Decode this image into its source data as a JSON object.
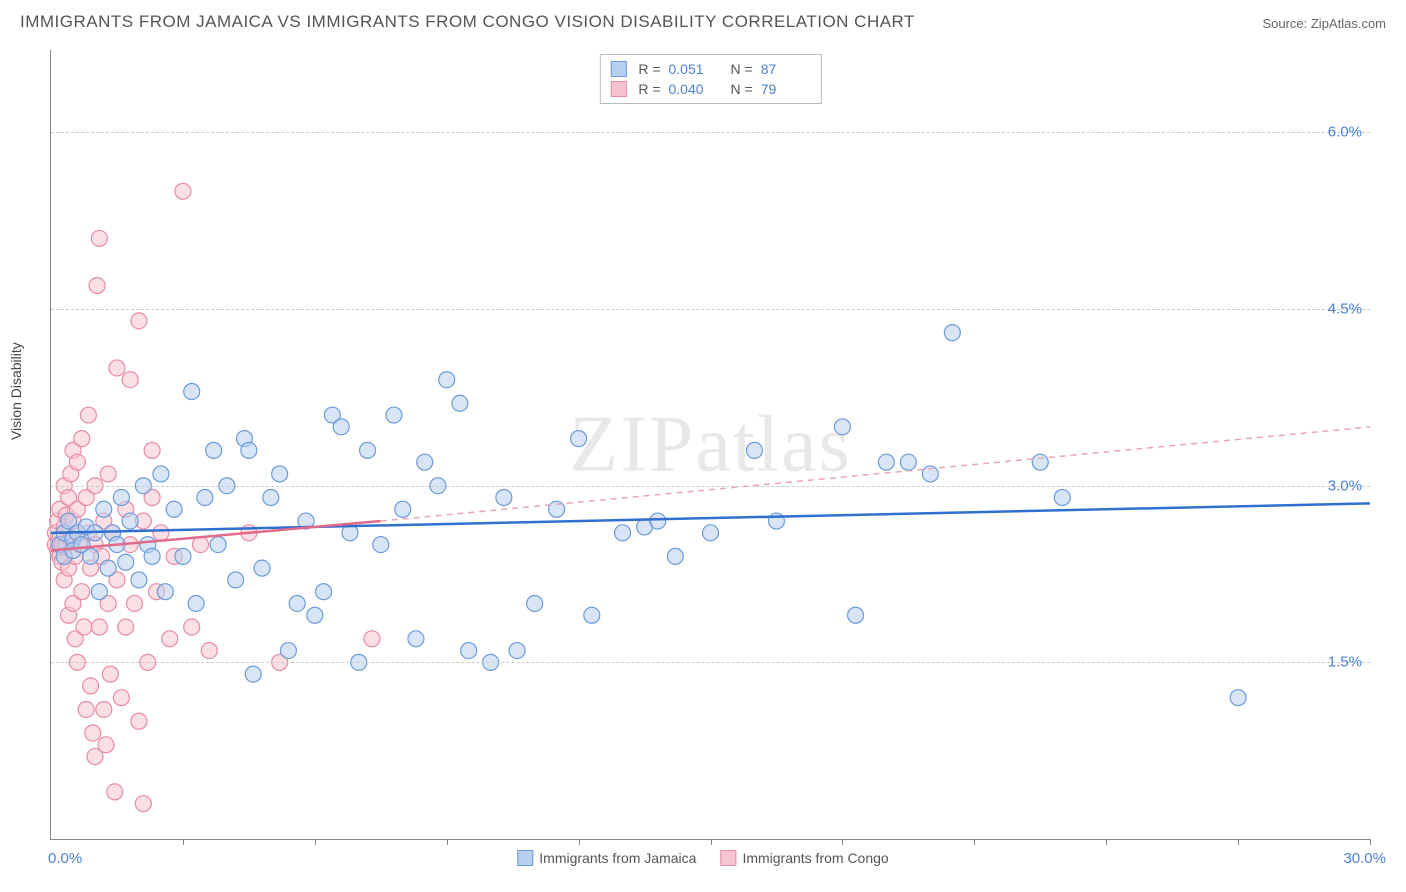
{
  "title": "IMMIGRANTS FROM JAMAICA VS IMMIGRANTS FROM CONGO VISION DISABILITY CORRELATION CHART",
  "source": "Source: ZipAtlas.com",
  "ylabel": "Vision Disability",
  "watermark": "ZIPatlas",
  "chart": {
    "type": "scatter",
    "xlim": [
      0,
      30
    ],
    "ylim": [
      0,
      6.7
    ],
    "y_gridlines": [
      1.5,
      3.0,
      4.5,
      6.0
    ],
    "y_tick_labels": [
      "1.5%",
      "3.0%",
      "4.5%",
      "6.0%"
    ],
    "x_ticks": [
      3,
      6,
      9,
      12,
      15,
      18,
      21,
      24,
      27,
      30
    ],
    "x_axis_start_label": "0.0%",
    "x_axis_end_label": "30.0%",
    "grid_color": "#cccccc",
    "axis_color": "#888888",
    "background_color": "#ffffff",
    "marker_radius": 8,
    "marker_opacity": 0.55,
    "series": [
      {
        "name": "Immigrants from Jamaica",
        "color_fill": "#b8d0f0",
        "color_stroke": "#6b9bd8",
        "R": "0.051",
        "N": "87",
        "trend": {
          "solid_to_x": 30,
          "y_start": 2.6,
          "y_end": 2.85,
          "dashed": false
        },
        "points": [
          [
            0.2,
            2.5
          ],
          [
            0.3,
            2.6
          ],
          [
            0.3,
            2.4
          ],
          [
            0.4,
            2.7
          ],
          [
            0.5,
            2.55
          ],
          [
            0.5,
            2.45
          ],
          [
            0.6,
            2.6
          ],
          [
            0.7,
            2.5
          ],
          [
            0.8,
            2.65
          ],
          [
            0.9,
            2.4
          ],
          [
            1.0,
            2.6
          ],
          [
            1.1,
            2.1
          ],
          [
            1.2,
            2.8
          ],
          [
            1.3,
            2.3
          ],
          [
            1.4,
            2.6
          ],
          [
            1.5,
            2.5
          ],
          [
            1.6,
            2.9
          ],
          [
            1.7,
            2.35
          ],
          [
            1.8,
            2.7
          ],
          [
            2.0,
            2.2
          ],
          [
            2.1,
            3.0
          ],
          [
            2.2,
            2.5
          ],
          [
            2.3,
            2.4
          ],
          [
            2.5,
            3.1
          ],
          [
            2.6,
            2.1
          ],
          [
            2.8,
            2.8
          ],
          [
            3.0,
            2.4
          ],
          [
            3.2,
            3.8
          ],
          [
            3.3,
            2.0
          ],
          [
            3.5,
            2.9
          ],
          [
            3.7,
            3.3
          ],
          [
            3.8,
            2.5
          ],
          [
            4.0,
            3.0
          ],
          [
            4.2,
            2.2
          ],
          [
            4.4,
            3.4
          ],
          [
            4.5,
            3.3
          ],
          [
            4.6,
            1.4
          ],
          [
            4.8,
            2.3
          ],
          [
            5.0,
            2.9
          ],
          [
            5.2,
            3.1
          ],
          [
            5.4,
            1.6
          ],
          [
            5.6,
            2.0
          ],
          [
            5.8,
            2.7
          ],
          [
            6.0,
            1.9
          ],
          [
            6.2,
            2.1
          ],
          [
            6.4,
            3.6
          ],
          [
            6.6,
            3.5
          ],
          [
            6.8,
            2.6
          ],
          [
            7.0,
            1.5
          ],
          [
            7.2,
            3.3
          ],
          [
            7.5,
            2.5
          ],
          [
            7.8,
            3.6
          ],
          [
            8.0,
            2.8
          ],
          [
            8.3,
            1.7
          ],
          [
            8.5,
            3.2
          ],
          [
            8.8,
            3.0
          ],
          [
            9.0,
            3.9
          ],
          [
            9.3,
            3.7
          ],
          [
            9.5,
            1.6
          ],
          [
            10.0,
            1.5
          ],
          [
            10.3,
            2.9
          ],
          [
            10.6,
            1.6
          ],
          [
            11.0,
            2.0
          ],
          [
            11.5,
            2.8
          ],
          [
            12.0,
            3.4
          ],
          [
            12.3,
            1.9
          ],
          [
            13.0,
            2.6
          ],
          [
            13.5,
            2.65
          ],
          [
            13.8,
            2.7
          ],
          [
            14.2,
            2.4
          ],
          [
            15.0,
            2.6
          ],
          [
            16.0,
            3.3
          ],
          [
            16.5,
            2.7
          ],
          [
            18.0,
            3.5
          ],
          [
            18.3,
            1.9
          ],
          [
            19.0,
            3.2
          ],
          [
            19.5,
            3.2
          ],
          [
            20.0,
            3.1
          ],
          [
            20.5,
            4.3
          ],
          [
            22.5,
            3.2
          ],
          [
            23.0,
            2.9
          ],
          [
            27.0,
            1.2
          ]
        ]
      },
      {
        "name": "Immigrants from Congo",
        "color_fill": "#f5c4d0",
        "color_stroke": "#e88ba5",
        "R": "0.040",
        "N": "79",
        "trend": {
          "solid_to_x": 7.5,
          "y_start": 2.45,
          "y_end_solid": 2.7,
          "y_end_dashed": 3.5,
          "dashed": true
        },
        "points": [
          [
            0.1,
            2.5
          ],
          [
            0.1,
            2.6
          ],
          [
            0.15,
            2.45
          ],
          [
            0.15,
            2.7
          ],
          [
            0.2,
            2.55
          ],
          [
            0.2,
            2.4
          ],
          [
            0.2,
            2.8
          ],
          [
            0.25,
            2.5
          ],
          [
            0.25,
            2.35
          ],
          [
            0.3,
            2.65
          ],
          [
            0.3,
            2.2
          ],
          [
            0.3,
            3.0
          ],
          [
            0.35,
            2.5
          ],
          [
            0.35,
            2.75
          ],
          [
            0.4,
            2.3
          ],
          [
            0.4,
            2.9
          ],
          [
            0.4,
            1.9
          ],
          [
            0.45,
            2.55
          ],
          [
            0.45,
            3.1
          ],
          [
            0.5,
            2.0
          ],
          [
            0.5,
            2.7
          ],
          [
            0.5,
            3.3
          ],
          [
            0.55,
            2.4
          ],
          [
            0.55,
            1.7
          ],
          [
            0.6,
            2.8
          ],
          [
            0.6,
            3.2
          ],
          [
            0.6,
            1.5
          ],
          [
            0.65,
            2.5
          ],
          [
            0.7,
            2.1
          ],
          [
            0.7,
            3.4
          ],
          [
            0.75,
            1.8
          ],
          [
            0.8,
            2.9
          ],
          [
            0.8,
            1.1
          ],
          [
            0.85,
            2.6
          ],
          [
            0.85,
            3.6
          ],
          [
            0.9,
            1.3
          ],
          [
            0.9,
            2.3
          ],
          [
            0.95,
            0.9
          ],
          [
            1.0,
            2.5
          ],
          [
            1.0,
            3.0
          ],
          [
            1.0,
            0.7
          ],
          [
            1.05,
            4.7
          ],
          [
            1.1,
            1.8
          ],
          [
            1.1,
            5.1
          ],
          [
            1.15,
            2.4
          ],
          [
            1.2,
            1.1
          ],
          [
            1.2,
            2.7
          ],
          [
            1.25,
            0.8
          ],
          [
            1.3,
            2.0
          ],
          [
            1.3,
            3.1
          ],
          [
            1.35,
            1.4
          ],
          [
            1.4,
            2.6
          ],
          [
            1.45,
            0.4
          ],
          [
            1.5,
            2.2
          ],
          [
            1.5,
            4.0
          ],
          [
            1.6,
            1.2
          ],
          [
            1.7,
            2.8
          ],
          [
            1.7,
            1.8
          ],
          [
            1.8,
            2.5
          ],
          [
            1.8,
            3.9
          ],
          [
            1.9,
            2.0
          ],
          [
            2.0,
            4.4
          ],
          [
            2.0,
            1.0
          ],
          [
            2.1,
            2.7
          ],
          [
            2.1,
            0.3
          ],
          [
            2.2,
            1.5
          ],
          [
            2.3,
            2.9
          ],
          [
            2.3,
            3.3
          ],
          [
            2.4,
            2.1
          ],
          [
            2.5,
            2.6
          ],
          [
            2.7,
            1.7
          ],
          [
            2.8,
            2.4
          ],
          [
            3.0,
            5.5
          ],
          [
            3.2,
            1.8
          ],
          [
            3.4,
            2.5
          ],
          [
            3.6,
            1.6
          ],
          [
            4.5,
            2.6
          ],
          [
            5.2,
            1.5
          ],
          [
            7.3,
            1.7
          ]
        ]
      }
    ]
  },
  "legend_top": {
    "R_label": "R  =",
    "N_label": "N  ="
  },
  "legend_bottom": {
    "items": [
      "Immigrants from Jamaica",
      "Immigrants from Congo"
    ]
  }
}
